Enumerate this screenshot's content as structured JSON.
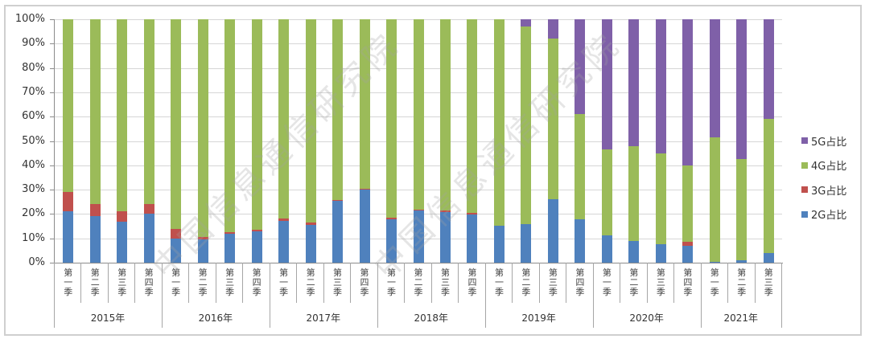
{
  "chart_data": {
    "type": "bar",
    "stacked": true,
    "percent_stacked": true,
    "title": "",
    "xlabel": "",
    "ylabel": "",
    "ylim": [
      0,
      100
    ],
    "yticks": [
      "0%",
      "10%",
      "20%",
      "30%",
      "40%",
      "50%",
      "60%",
      "70%",
      "80%",
      "90%",
      "100%"
    ],
    "grid": true,
    "legend_position": "right",
    "categories": [
      "2015年 第一季",
      "2015年 第二季",
      "2015年 第三季",
      "2015年 第四季",
      "2016年 第一季",
      "2016年 第二季",
      "2016年 第三季",
      "2016年 第四季",
      "2017年 第一季",
      "2017年 第二季",
      "2017年 第三季",
      "2017年 第四季",
      "2018年 第一季",
      "2018年 第二季",
      "2018年 第三季",
      "2018年 第四季",
      "2019年 第一季",
      "2019年 第二季",
      "2019年 第三季",
      "2019年 第四季",
      "2020年 第一季",
      "2020年 第二季",
      "2020年 第三季",
      "2020年 第四季",
      "2021年 第一季",
      "2021年 第二季",
      "2021年 第三季"
    ],
    "quarter_labels": [
      "第一季",
      "第二季",
      "第三季",
      "第四季",
      "第一季",
      "第二季",
      "第三季",
      "第四季",
      "第一季",
      "第二季",
      "第三季",
      "第四季",
      "第一季",
      "第二季",
      "第三季",
      "第四季",
      "第一季",
      "第二季",
      "第三季",
      "第四季",
      "第一季",
      "第二季",
      "第三季",
      "第四季",
      "第一季",
      "第二季",
      "第三季"
    ],
    "years": [
      {
        "label": "2015年",
        "quarters": 4
      },
      {
        "label": "2016年",
        "quarters": 4
      },
      {
        "label": "2017年",
        "quarters": 4
      },
      {
        "label": "2018年",
        "quarters": 4
      },
      {
        "label": "2019年",
        "quarters": 4
      },
      {
        "label": "2020年",
        "quarters": 4
      },
      {
        "label": "2021年",
        "quarters": 3
      }
    ],
    "series": [
      {
        "name": "2G占比",
        "color": "#4f81bd",
        "values": [
          21,
          19.3,
          17,
          20,
          10,
          9.5,
          12,
          13,
          17.2,
          15.6,
          25.5,
          30.2,
          17.9,
          21.5,
          20.8,
          19.9,
          15.3,
          16,
          26,
          17.8,
          11.2,
          8.8,
          7.7,
          6.8,
          0.3,
          1,
          4
        ]
      },
      {
        "name": "3G占比",
        "color": "#c0504d",
        "values": [
          8,
          4.7,
          4,
          4,
          4,
          1.2,
          0.5,
          0.5,
          0.8,
          1,
          0.3,
          0.2,
          0.6,
          0.3,
          0.5,
          0.5,
          0,
          0,
          0,
          0,
          0,
          0,
          0,
          1.9,
          0,
          0,
          0
        ]
      },
      {
        "name": "4G占比",
        "color": "#9bbb59",
        "values": [
          71,
          76,
          79,
          76,
          86,
          89.3,
          87.5,
          86.5,
          82,
          83.4,
          74.2,
          69.6,
          81.5,
          78.2,
          78.7,
          79.6,
          84.7,
          81,
          66.2,
          43.2,
          35.3,
          39.2,
          37.3,
          31.3,
          51.2,
          41.5,
          55
        ]
      },
      {
        "name": "5G占比",
        "color": "#7f60a8",
        "values": [
          0,
          0,
          0,
          0,
          0,
          0,
          0,
          0,
          0,
          0,
          0,
          0,
          0,
          0,
          0,
          0,
          0,
          3,
          7.8,
          39,
          53.5,
          52,
          55,
          60,
          48.5,
          57.5,
          41
        ]
      }
    ],
    "legend_order": [
      "5G占比",
      "4G占比",
      "3G占比",
      "2G占比"
    ],
    "watermark": "中国信息通信研究院"
  }
}
